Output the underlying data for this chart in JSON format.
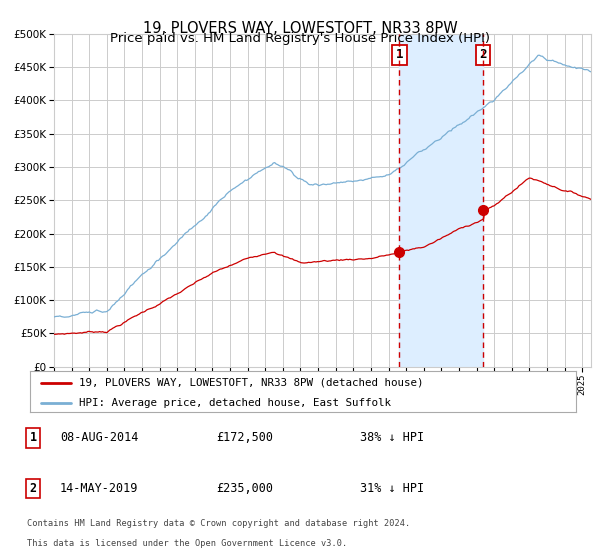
{
  "title": "19, PLOVERS WAY, LOWESTOFT, NR33 8PW",
  "subtitle": "Price paid vs. HM Land Registry's House Price Index (HPI)",
  "legend_red": "19, PLOVERS WAY, LOWESTOFT, NR33 8PW (detached house)",
  "legend_blue": "HPI: Average price, detached house, East Suffolk",
  "annotation1_date": "08-AUG-2014",
  "annotation1_price": 172500,
  "annotation1_info": "38% ↓ HPI",
  "annotation2_date": "14-MAY-2019",
  "annotation2_price": 235000,
  "annotation2_info": "31% ↓ HPI",
  "footer_line1": "Contains HM Land Registry data © Crown copyright and database right 2024.",
  "footer_line2": "This data is licensed under the Open Government Licence v3.0.",
  "xmin": 1995.0,
  "xmax": 2025.5,
  "ymin": 0,
  "ymax": 500000,
  "vline1_x": 2014.62,
  "vline2_x": 2019.37,
  "shade_start": 2014.62,
  "shade_end": 2019.37,
  "red_color": "#cc0000",
  "blue_color": "#7aafd4",
  "shade_color": "#ddeeff",
  "grid_color": "#cccccc",
  "bg_color": "#ffffff",
  "annotation_box_color": "#cc0000",
  "legend_border_color": "#aaaaaa"
}
